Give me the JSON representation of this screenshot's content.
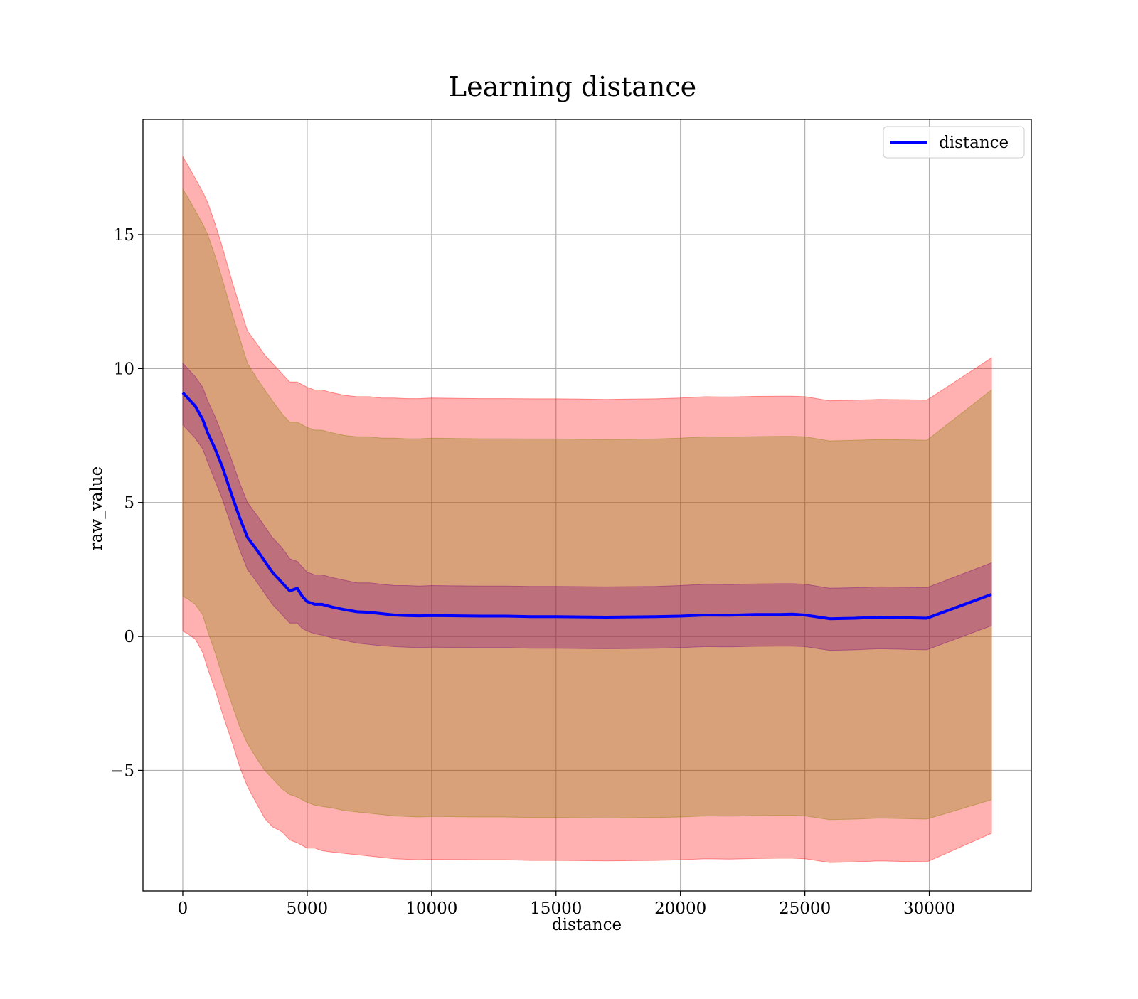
{
  "chart_data": {
    "type": "line",
    "title": "Learning distance",
    "xlabel": "distance",
    "ylabel": "raw_value",
    "xlim": [
      -1600,
      34100
    ],
    "ylim": [
      -9.5,
      19.3
    ],
    "xticks": [
      0,
      5000,
      10000,
      15000,
      20000,
      25000,
      30000
    ],
    "xtick_labels": [
      "0",
      "5000",
      "10000",
      "15000",
      "20000",
      "25000",
      "30000"
    ],
    "yticks": [
      -5,
      0,
      5,
      10,
      15
    ],
    "ytick_labels": [
      "−5",
      "0",
      "5",
      "10",
      "15"
    ],
    "grid": true,
    "legend": {
      "position": "top-right",
      "entries": [
        "distance"
      ]
    },
    "colors": {
      "line": "#0000ff",
      "outer_band": "#ff0000",
      "inner_band": "#808000",
      "innermost_band": "#800080",
      "grid": "#b0b0b0"
    },
    "x": [
      0,
      200,
      500,
      800,
      1000,
      1300,
      1600,
      2000,
      2300,
      2600,
      3000,
      3300,
      3600,
      4000,
      4300,
      4600,
      4800,
      5000,
      5300,
      5600,
      6000,
      6500,
      7000,
      7500,
      8000,
      8500,
      9000,
      9500,
      10000,
      11000,
      12000,
      13000,
      14000,
      15000,
      16000,
      17000,
      18000,
      19000,
      20000,
      21000,
      22000,
      23000,
      24000,
      24500,
      25000,
      26000,
      27000,
      28000,
      29000,
      29900,
      32500
    ],
    "series": [
      {
        "name": "distance",
        "values": [
          9.1,
          8.9,
          8.6,
          8.1,
          7.6,
          7.0,
          6.3,
          5.2,
          4.4,
          3.7,
          3.2,
          2.8,
          2.4,
          2.0,
          1.7,
          1.8,
          1.5,
          1.3,
          1.2,
          1.2,
          1.1,
          1.0,
          0.92,
          0.9,
          0.85,
          0.8,
          0.78,
          0.77,
          0.78,
          0.77,
          0.76,
          0.76,
          0.74,
          0.74,
          0.73,
          0.72,
          0.73,
          0.74,
          0.76,
          0.8,
          0.79,
          0.82,
          0.82,
          0.83,
          0.8,
          0.66,
          0.68,
          0.72,
          0.7,
          0.68,
          1.57
        ]
      },
      {
        "name": "",
        "band": "innermost",
        "upper": [
          10.2,
          10.0,
          9.7,
          9.3,
          8.8,
          8.2,
          7.5,
          6.5,
          5.7,
          5.0,
          4.5,
          4.1,
          3.7,
          3.3,
          2.9,
          2.8,
          2.6,
          2.4,
          2.3,
          2.3,
          2.2,
          2.1,
          2.0,
          2.0,
          1.95,
          1.9,
          1.9,
          1.88,
          1.9,
          1.89,
          1.88,
          1.88,
          1.87,
          1.87,
          1.86,
          1.85,
          1.86,
          1.87,
          1.9,
          1.95,
          1.94,
          1.96,
          1.97,
          1.97,
          1.95,
          1.8,
          1.82,
          1.85,
          1.84,
          1.82,
          2.75
        ],
        "lower": [
          7.9,
          7.7,
          7.4,
          7.0,
          6.5,
          5.8,
          5.1,
          4.0,
          3.2,
          2.5,
          2.0,
          1.6,
          1.2,
          0.8,
          0.5,
          0.5,
          0.3,
          0.2,
          0.1,
          0.05,
          -0.05,
          -0.15,
          -0.25,
          -0.3,
          -0.35,
          -0.38,
          -0.4,
          -0.42,
          -0.4,
          -0.41,
          -0.42,
          -0.42,
          -0.44,
          -0.44,
          -0.45,
          -0.46,
          -0.45,
          -0.44,
          -0.42,
          -0.38,
          -0.39,
          -0.37,
          -0.36,
          -0.36,
          -0.38,
          -0.52,
          -0.5,
          -0.46,
          -0.48,
          -0.5,
          0.4
        ]
      },
      {
        "name": "",
        "band": "inner",
        "upper": [
          16.7,
          16.4,
          15.9,
          15.4,
          15.0,
          14.2,
          13.3,
          12.0,
          11.1,
          10.2,
          9.6,
          9.2,
          8.8,
          8.3,
          8.0,
          8.0,
          7.9,
          7.8,
          7.7,
          7.7,
          7.6,
          7.5,
          7.45,
          7.45,
          7.4,
          7.4,
          7.38,
          7.38,
          7.4,
          7.39,
          7.38,
          7.38,
          7.37,
          7.37,
          7.36,
          7.35,
          7.36,
          7.37,
          7.4,
          7.45,
          7.44,
          7.46,
          7.47,
          7.47,
          7.45,
          7.3,
          7.32,
          7.35,
          7.34,
          7.32,
          9.2
        ],
        "lower": [
          1.5,
          1.4,
          1.2,
          0.8,
          0.2,
          -0.6,
          -1.5,
          -2.6,
          -3.4,
          -4.0,
          -4.6,
          -5.0,
          -5.3,
          -5.7,
          -5.9,
          -6.0,
          -6.1,
          -6.2,
          -6.3,
          -6.35,
          -6.4,
          -6.5,
          -6.55,
          -6.6,
          -6.65,
          -6.7,
          -6.72,
          -6.74,
          -6.72,
          -6.73,
          -6.74,
          -6.74,
          -6.76,
          -6.76,
          -6.77,
          -6.78,
          -6.77,
          -6.76,
          -6.74,
          -6.7,
          -6.71,
          -6.69,
          -6.68,
          -6.68,
          -6.7,
          -6.84,
          -6.82,
          -6.78,
          -6.8,
          -6.82,
          -6.1
        ]
      },
      {
        "name": "",
        "band": "outer",
        "upper": [
          17.9,
          17.6,
          17.1,
          16.6,
          16.2,
          15.4,
          14.5,
          13.2,
          12.3,
          11.4,
          10.9,
          10.5,
          10.2,
          9.8,
          9.5,
          9.5,
          9.4,
          9.3,
          9.2,
          9.2,
          9.1,
          9.0,
          8.95,
          8.95,
          8.9,
          8.9,
          8.88,
          8.88,
          8.9,
          8.89,
          8.88,
          8.88,
          8.87,
          8.87,
          8.86,
          8.85,
          8.86,
          8.87,
          8.9,
          8.95,
          8.94,
          8.96,
          8.97,
          8.97,
          8.95,
          8.8,
          8.82,
          8.85,
          8.84,
          8.82,
          10.4
        ],
        "lower": [
          0.2,
          0.1,
          -0.1,
          -0.6,
          -1.2,
          -2.0,
          -2.9,
          -4.0,
          -4.9,
          -5.6,
          -6.3,
          -6.8,
          -7.1,
          -7.3,
          -7.6,
          -7.7,
          -7.8,
          -7.9,
          -7.9,
          -8.0,
          -8.05,
          -8.1,
          -8.15,
          -8.2,
          -8.25,
          -8.3,
          -8.32,
          -8.34,
          -8.32,
          -8.33,
          -8.34,
          -8.34,
          -8.36,
          -8.36,
          -8.37,
          -8.38,
          -8.37,
          -8.36,
          -8.34,
          -8.3,
          -8.31,
          -8.29,
          -8.28,
          -8.28,
          -8.3,
          -8.44,
          -8.42,
          -8.38,
          -8.4,
          -8.42,
          -7.35
        ]
      }
    ]
  }
}
